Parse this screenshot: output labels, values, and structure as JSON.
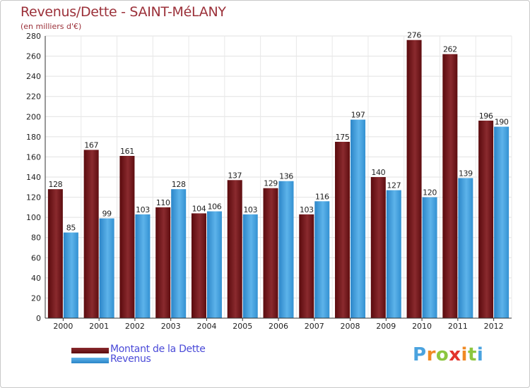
{
  "title": "Revenus/Dette - SAINT-MéLANY",
  "subtitle": "(en milliers d'€)",
  "legend": {
    "dette_label": "Montant de la Dette",
    "revenus_label": "Revenus"
  },
  "logo": {
    "letters": [
      "P",
      "r",
      "o",
      "x",
      "i",
      "t",
      "i"
    ],
    "colors": [
      "#4aa3df",
      "#f08a24",
      "#8cc63f",
      "#e2332c",
      "#f08a24",
      "#8cc63f",
      "#4aa3df"
    ]
  },
  "colors": {
    "dette": "#6e0f12",
    "revenus": "#3d9ad8",
    "title": "#9b3039",
    "legend_text": "#4a4ad8"
  },
  "chart_data": {
    "type": "bar",
    "title": "Revenus/Dette - SAINT-MéLANY",
    "subtitle": "(en milliers d'€)",
    "categories": [
      "2000",
      "2001",
      "2002",
      "2003",
      "2004",
      "2005",
      "2006",
      "2007",
      "2008",
      "2009",
      "2010",
      "2011",
      "2012"
    ],
    "series": [
      {
        "name": "Montant de la Dette",
        "values": [
          128,
          167,
          161,
          110,
          104,
          137,
          129,
          103,
          175,
          140,
          276,
          262,
          196
        ]
      },
      {
        "name": "Revenus",
        "values": [
          85,
          99,
          103,
          128,
          106,
          103,
          136,
          116,
          197,
          127,
          120,
          139,
          190
        ]
      }
    ],
    "ylim": [
      0,
      280
    ],
    "yticks": [
      0,
      20,
      40,
      60,
      80,
      100,
      120,
      140,
      160,
      180,
      200,
      220,
      240,
      260,
      280
    ],
    "grid": true,
    "legend_position": "bottom-left"
  }
}
